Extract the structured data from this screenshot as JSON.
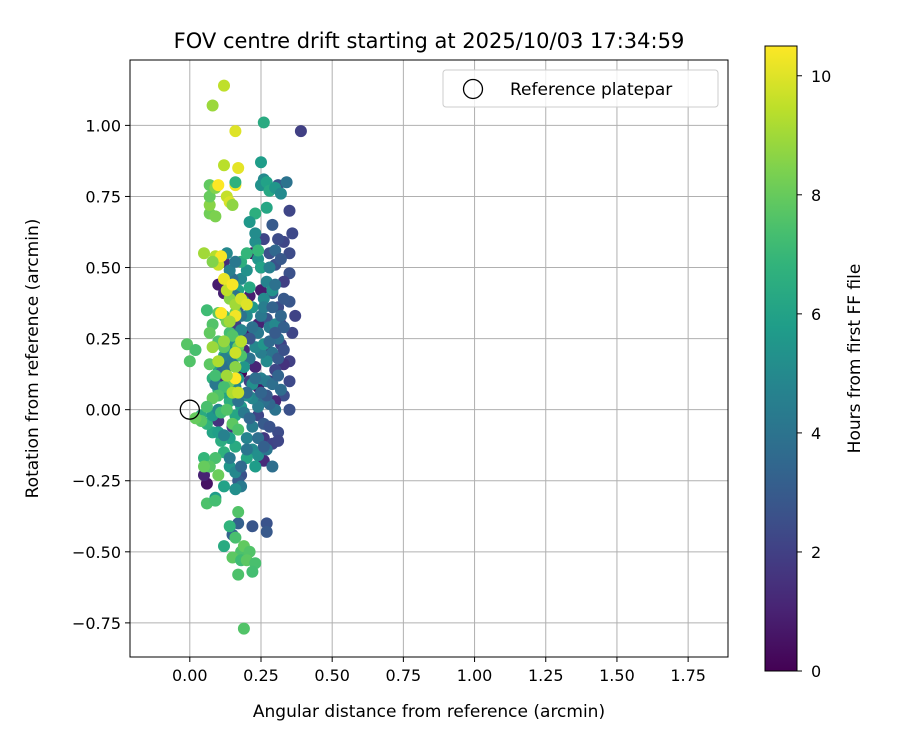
{
  "chart_data": {
    "type": "scatter",
    "title": "FOV centre drift starting at 2025/10/03 17:34:59",
    "xlabel": "Angular distance from reference (arcmin)",
    "ylabel": "Rotation from reference (arcmin)",
    "xlim": [
      -0.21,
      1.89
    ],
    "ylim": [
      -0.87,
      1.23
    ],
    "xticks": [
      0.0,
      0.25,
      0.5,
      0.75,
      1.0,
      1.25,
      1.5,
      1.75
    ],
    "xtick_labels": [
      "0.00",
      "0.25",
      "0.50",
      "0.75",
      "1.00",
      "1.25",
      "1.50",
      "1.75"
    ],
    "yticks": [
      -0.75,
      -0.5,
      -0.25,
      0.0,
      0.25,
      0.5,
      0.75,
      1.0
    ],
    "ytick_labels": [
      "−0.75",
      "−0.50",
      "−0.25",
      "0.00",
      "0.25",
      "0.50",
      "0.75",
      "1.00"
    ],
    "grid": true,
    "legend": {
      "position": "upper right",
      "entries": [
        "Reference platepar"
      ]
    },
    "reference_point": {
      "label": "Reference platepar",
      "x": 0.0,
      "y": 0.0
    },
    "colorbar": {
      "label": "Hours from first FF file",
      "range": [
        0,
        10.5
      ],
      "ticks": [
        0,
        2,
        4,
        6,
        8,
        10
      ],
      "tick_labels": [
        "0",
        "2",
        "4",
        "6",
        "8",
        "10"
      ],
      "colormap": "viridis"
    },
    "points": [
      [
        0.39,
        0.98,
        2.0
      ],
      [
        0.35,
        0.7,
        2.2
      ],
      [
        0.36,
        0.62,
        2.3
      ],
      [
        0.35,
        0.55,
        2.4
      ],
      [
        0.35,
        0.48,
        2.6
      ],
      [
        0.37,
        0.33,
        2.1
      ],
      [
        0.35,
        0.38,
        2.8
      ],
      [
        0.36,
        0.27,
        2.2
      ],
      [
        0.35,
        0.17,
        2.0
      ],
      [
        0.35,
        0.1,
        2.3
      ],
      [
        0.33,
        0.05,
        2.5
      ],
      [
        0.35,
        0.0,
        2.6
      ],
      [
        0.33,
        0.59,
        2.2
      ],
      [
        0.33,
        0.45,
        2.0
      ],
      [
        0.32,
        0.3,
        1.8
      ],
      [
        0.32,
        0.23,
        2.1
      ],
      [
        0.33,
        0.16,
        1.5
      ],
      [
        0.31,
        0.36,
        2.4
      ],
      [
        0.3,
        0.51,
        2.6
      ],
      [
        0.29,
        0.41,
        3.0
      ],
      [
        0.3,
        0.14,
        2.2
      ],
      [
        0.28,
        0.1,
        1.6
      ],
      [
        0.3,
        0.03,
        1.2
      ],
      [
        0.28,
        0.2,
        1.0
      ],
      [
        0.27,
        0.32,
        2.8
      ],
      [
        0.29,
        0.65,
        3.0
      ],
      [
        0.28,
        0.55,
        2.6
      ],
      [
        0.31,
        0.6,
        2.4
      ],
      [
        0.31,
        0.79,
        2.8
      ],
      [
        0.26,
        0.6,
        2.2
      ],
      [
        0.25,
        0.5,
        1.4
      ],
      [
        0.25,
        0.42,
        0.8
      ],
      [
        0.24,
        0.3,
        1.0
      ],
      [
        0.23,
        0.15,
        1.1
      ],
      [
        0.24,
        0.08,
        0.6
      ],
      [
        0.22,
        0.04,
        0.4
      ],
      [
        0.22,
        0.55,
        0.5
      ],
      [
        0.21,
        0.4,
        0.9
      ],
      [
        0.2,
        0.27,
        0.7
      ],
      [
        0.19,
        0.21,
        1.3
      ],
      [
        0.18,
        0.13,
        0.2
      ],
      [
        0.21,
        0.1,
        2.0
      ],
      [
        0.24,
        -0.02,
        2.2
      ],
      [
        0.26,
        -0.1,
        1.7
      ],
      [
        0.26,
        -0.18,
        1.3
      ],
      [
        0.29,
        -0.12,
        2.1
      ],
      [
        0.31,
        -0.08,
        2.4
      ],
      [
        0.27,
        -0.4,
        2.7
      ],
      [
        0.27,
        -0.43,
        2.9
      ],
      [
        0.22,
        -0.41,
        2.8
      ],
      [
        0.17,
        -0.4,
        3.2
      ],
      [
        0.15,
        -0.44,
        3.3
      ],
      [
        0.06,
        -0.26,
        0.5
      ],
      [
        0.05,
        -0.23,
        1.0
      ],
      [
        0.18,
        -0.23,
        2.6
      ],
      [
        0.17,
        -0.25,
        3.0
      ],
      [
        0.15,
        -0.06,
        1.8
      ],
      [
        0.1,
        -0.04,
        1.5
      ],
      [
        0.14,
        0.05,
        0.3
      ],
      [
        0.11,
        0.09,
        1.5
      ],
      [
        0.16,
        0.3,
        2.0
      ],
      [
        0.14,
        0.25,
        3.5
      ],
      [
        0.12,
        0.41,
        1.0
      ],
      [
        0.1,
        0.44,
        0.8
      ],
      [
        0.12,
        0.52,
        1.3
      ],
      [
        0.26,
        0.81,
        5.0
      ],
      [
        0.25,
        0.79,
        5.3
      ],
      [
        0.27,
        0.8,
        6.0
      ],
      [
        0.28,
        0.77,
        6.3
      ],
      [
        0.3,
        0.78,
        5.5
      ],
      [
        0.34,
        0.8,
        4.0
      ],
      [
        0.32,
        0.76,
        5.0
      ],
      [
        0.27,
        0.71,
        6.2
      ],
      [
        0.23,
        0.69,
        6.6
      ],
      [
        0.21,
        0.66,
        5.6
      ],
      [
        0.25,
        0.87,
        5.8
      ],
      [
        0.26,
        1.01,
        6.4
      ],
      [
        0.23,
        0.59,
        5.2
      ],
      [
        0.24,
        0.53,
        5.5
      ],
      [
        0.25,
        0.5,
        6.0
      ],
      [
        0.27,
        0.45,
        4.7
      ],
      [
        0.29,
        0.42,
        5.3
      ],
      [
        0.26,
        0.39,
        5.0
      ],
      [
        0.22,
        0.36,
        5.6
      ],
      [
        0.25,
        0.33,
        4.2
      ],
      [
        0.28,
        0.29,
        4.3
      ],
      [
        0.3,
        0.3,
        4.9
      ],
      [
        0.32,
        0.33,
        3.5
      ],
      [
        0.33,
        0.29,
        3.2
      ],
      [
        0.31,
        0.25,
        3.8
      ],
      [
        0.29,
        0.2,
        4.0
      ],
      [
        0.27,
        0.17,
        5.0
      ],
      [
        0.25,
        0.2,
        4.5
      ],
      [
        0.23,
        0.22,
        4.9
      ],
      [
        0.21,
        0.18,
        4.0
      ],
      [
        0.19,
        0.15,
        5.5
      ],
      [
        0.17,
        0.11,
        5.6
      ],
      [
        0.22,
        0.09,
        5.2
      ],
      [
        0.25,
        0.11,
        4.6
      ],
      [
        0.27,
        0.1,
        4.3
      ],
      [
        0.29,
        0.09,
        3.8
      ],
      [
        0.31,
        0.12,
        3.4
      ],
      [
        0.32,
        0.07,
        3.7
      ],
      [
        0.3,
        0.0,
        4.0
      ],
      [
        0.28,
        0.02,
        3.5
      ],
      [
        0.26,
        0.03,
        3.9
      ],
      [
        0.24,
        0.01,
        4.4
      ],
      [
        0.22,
        0.04,
        4.8
      ],
      [
        0.2,
        0.05,
        5.2
      ],
      [
        0.18,
        0.01,
        5.7
      ],
      [
        0.16,
        -0.02,
        6.2
      ],
      [
        0.14,
        0.03,
        6.6
      ],
      [
        0.12,
        0.06,
        6.1
      ],
      [
        0.1,
        0.07,
        6.5
      ],
      [
        0.08,
        0.11,
        6.7
      ],
      [
        0.1,
        0.15,
        6.2
      ],
      [
        0.12,
        0.19,
        6.4
      ],
      [
        0.14,
        0.21,
        5.4
      ],
      [
        0.16,
        0.23,
        5.1
      ],
      [
        0.18,
        0.28,
        4.8
      ],
      [
        0.2,
        0.33,
        5.0
      ],
      [
        0.19,
        0.38,
        5.6
      ],
      [
        0.17,
        0.42,
        6.0
      ],
      [
        0.18,
        0.46,
        4.9
      ],
      [
        0.2,
        0.49,
        5.3
      ],
      [
        0.21,
        0.43,
        6.3
      ],
      [
        0.18,
        0.52,
        6.6
      ],
      [
        0.2,
        0.55,
        6.9
      ],
      [
        0.24,
        0.56,
        7.0
      ],
      [
        0.23,
        0.62,
        5.1
      ],
      [
        0.22,
        -0.06,
        4.4
      ],
      [
        0.2,
        -0.1,
        4.7
      ],
      [
        0.22,
        -0.14,
        5.0
      ],
      [
        0.24,
        -0.16,
        5.2
      ],
      [
        0.27,
        -0.14,
        4.1
      ],
      [
        0.29,
        -0.2,
        3.8
      ],
      [
        0.23,
        -0.2,
        5.8
      ],
      [
        0.2,
        -0.17,
        6.2
      ],
      [
        0.16,
        -0.13,
        6.4
      ],
      [
        0.14,
        -0.1,
        5.9
      ],
      [
        0.11,
        -0.11,
        6.5
      ],
      [
        0.08,
        -0.08,
        6.1
      ],
      [
        0.06,
        -0.05,
        6.7
      ],
      [
        0.04,
        -0.02,
        6.4
      ],
      [
        0.08,
        -0.02,
        5.6
      ],
      [
        0.1,
        -0.08,
        5.9
      ],
      [
        0.12,
        -0.15,
        6.7
      ],
      [
        0.14,
        -0.2,
        5.5
      ],
      [
        0.16,
        -0.22,
        4.9
      ],
      [
        0.18,
        -0.27,
        4.3
      ],
      [
        0.16,
        -0.28,
        5.2
      ],
      [
        0.12,
        -0.27,
        6.0
      ],
      [
        0.09,
        -0.31,
        5.8
      ],
      [
        0.07,
        -0.2,
        6.5
      ],
      [
        0.05,
        -0.17,
        6.9
      ],
      [
        0.26,
        0.36,
        4.5
      ],
      [
        0.24,
        0.27,
        4.2
      ],
      [
        0.26,
        0.23,
        5.4
      ],
      [
        0.28,
        0.24,
        3.6
      ],
      [
        0.3,
        0.27,
        3.0
      ],
      [
        0.33,
        0.39,
        2.9
      ],
      [
        0.3,
        0.44,
        3.9
      ],
      [
        0.28,
        0.5,
        4.5
      ],
      [
        0.3,
        0.56,
        3.5
      ],
      [
        0.32,
        0.53,
        2.9
      ],
      [
        0.29,
        0.36,
        3.3
      ],
      [
        0.31,
        0.18,
        3.0
      ],
      [
        0.33,
        0.21,
        2.6
      ],
      [
        0.27,
        0.05,
        2.9
      ],
      [
        0.25,
        0.06,
        3.4
      ],
      [
        0.2,
        0.06,
        3.7
      ],
      [
        0.19,
        -0.01,
        4.3
      ],
      [
        0.17,
        0.03,
        4.0
      ],
      [
        0.21,
        -0.03,
        3.5
      ],
      [
        0.23,
        0.11,
        3.8
      ],
      [
        0.21,
        0.25,
        2.8
      ],
      [
        0.22,
        0.29,
        3.9
      ],
      [
        0.18,
        0.33,
        4.0
      ],
      [
        0.17,
        0.36,
        3.3
      ],
      [
        0.16,
        0.4,
        4.1
      ],
      [
        0.15,
        0.46,
        3.8
      ],
      [
        0.14,
        0.49,
        4.5
      ],
      [
        0.16,
        0.52,
        4.2
      ],
      [
        0.13,
        0.55,
        4.9
      ],
      [
        0.12,
        0.18,
        4.6
      ],
      [
        0.26,
        -0.05,
        3.0
      ],
      [
        0.28,
        -0.06,
        2.7
      ],
      [
        0.31,
        -0.11,
        2.2
      ],
      [
        0.24,
        -0.1,
        3.8
      ],
      [
        0.26,
        -0.13,
        3.2
      ],
      [
        0.2,
        -0.14,
        4.1
      ],
      [
        0.18,
        -0.2,
        3.6
      ],
      [
        0.14,
        -0.17,
        4.3
      ],
      [
        0.12,
        -0.09,
        4.6
      ],
      [
        0.1,
        0.0,
        4.9
      ],
      [
        0.09,
        0.09,
        4.2
      ],
      [
        0.11,
        0.13,
        3.6
      ],
      [
        0.13,
        0.15,
        3.9
      ],
      [
        0.15,
        0.17,
        4.4
      ],
      [
        0.16,
        0.08,
        4.8
      ],
      [
        0.12,
        0.33,
        7.4
      ],
      [
        0.1,
        0.34,
        7.8
      ],
      [
        0.08,
        0.3,
        7.6
      ],
      [
        0.06,
        0.35,
        7.2
      ],
      [
        0.07,
        0.27,
        7.9
      ],
      [
        0.1,
        0.24,
        7.5
      ],
      [
        0.12,
        0.22,
        7.8
      ],
      [
        0.14,
        0.27,
        7.3
      ],
      [
        0.13,
        0.31,
        8.3
      ],
      [
        0.16,
        0.34,
        8.0
      ],
      [
        0.15,
        0.26,
        7.6
      ],
      [
        0.17,
        0.22,
        8.2
      ],
      [
        0.18,
        0.19,
        7.5
      ],
      [
        0.16,
        0.15,
        8.6
      ],
      [
        0.14,
        0.1,
        8.2
      ],
      [
        0.12,
        0.08,
        7.3
      ],
      [
        0.1,
        0.05,
        7.5
      ],
      [
        0.08,
        0.04,
        7.9
      ],
      [
        0.06,
        0.01,
        7.4
      ],
      [
        0.04,
        -0.04,
        7.7
      ],
      [
        0.02,
        -0.03,
        8.0
      ],
      [
        0.0,
        0.17,
        7.6
      ],
      [
        -0.01,
        0.23,
        7.7
      ],
      [
        0.02,
        0.21,
        7.4
      ],
      [
        0.07,
        0.16,
        7.8
      ],
      [
        0.09,
        0.12,
        7.3
      ],
      [
        0.11,
        -0.01,
        7.2
      ],
      [
        0.13,
        0.0,
        7.6
      ],
      [
        0.15,
        -0.05,
        7.8
      ],
      [
        0.17,
        -0.07,
        7.5
      ],
      [
        0.09,
        -0.17,
        7.4
      ],
      [
        0.07,
        -0.2,
        7.7
      ],
      [
        0.05,
        -0.2,
        8.0
      ],
      [
        0.1,
        -0.23,
        8.1
      ],
      [
        0.06,
        -0.33,
        7.5
      ],
      [
        0.09,
        -0.32,
        7.3
      ],
      [
        0.17,
        -0.36,
        7.6
      ],
      [
        0.16,
        -0.45,
        7.4
      ],
      [
        0.18,
        -0.5,
        7.5
      ],
      [
        0.15,
        -0.52,
        7.8
      ],
      [
        0.19,
        -0.48,
        7.9
      ],
      [
        0.21,
        -0.5,
        7.6
      ],
      [
        0.18,
        -0.53,
        7.2
      ],
      [
        0.2,
        -0.53,
        7.8
      ],
      [
        0.23,
        -0.54,
        7.4
      ],
      [
        0.17,
        -0.58,
        7.5
      ],
      [
        0.22,
        -0.57,
        7.3
      ],
      [
        0.19,
        -0.77,
        7.6
      ],
      [
        0.12,
        -0.48,
        6.4
      ],
      [
        0.14,
        -0.41,
        6.8
      ],
      [
        0.14,
        0.39,
        8.6
      ],
      [
        0.16,
        0.37,
        9.0
      ],
      [
        0.13,
        0.42,
        9.5
      ],
      [
        0.12,
        0.46,
        10.2
      ],
      [
        0.15,
        0.44,
        10.4
      ],
      [
        0.18,
        0.39,
        9.8
      ],
      [
        0.2,
        0.37,
        10.0
      ],
      [
        0.16,
        0.33,
        10.3
      ],
      [
        0.14,
        0.31,
        9.0
      ],
      [
        0.11,
        0.34,
        10.5
      ],
      [
        0.18,
        0.24,
        9.4
      ],
      [
        0.16,
        0.2,
        9.7
      ],
      [
        0.16,
        0.11,
        10.5
      ],
      [
        0.15,
        0.06,
        9.2
      ],
      [
        0.17,
        0.06,
        9.6
      ],
      [
        0.13,
        0.12,
        9.0
      ],
      [
        0.12,
        0.24,
        8.8
      ],
      [
        0.1,
        0.17,
        9.2
      ],
      [
        0.08,
        0.22,
        8.9
      ],
      [
        0.1,
        0.51,
        9.7
      ],
      [
        0.09,
        0.54,
        9.3
      ],
      [
        0.11,
        0.54,
        10.4
      ],
      [
        0.05,
        0.55,
        9.0
      ],
      [
        0.08,
        0.52,
        8.5
      ],
      [
        0.07,
        0.69,
        8.2
      ],
      [
        0.07,
        0.72,
        8.6
      ],
      [
        0.07,
        0.75,
        8.0
      ],
      [
        0.07,
        0.79,
        7.9
      ],
      [
        0.09,
        0.78,
        8.5
      ],
      [
        0.1,
        0.79,
        10.5
      ],
      [
        0.13,
        0.75,
        9.6
      ],
      [
        0.14,
        0.73,
        9.9
      ],
      [
        0.15,
        0.72,
        8.7
      ],
      [
        0.16,
        0.79,
        10.3
      ],
      [
        0.16,
        0.8,
        6.7
      ],
      [
        0.17,
        0.85,
        10.1
      ],
      [
        0.12,
        0.86,
        9.4
      ],
      [
        0.09,
        0.68,
        8.4
      ],
      [
        0.16,
        0.98,
        10.0
      ],
      [
        0.12,
        1.14,
        9.5
      ],
      [
        0.08,
        1.07,
        8.9
      ]
    ]
  }
}
